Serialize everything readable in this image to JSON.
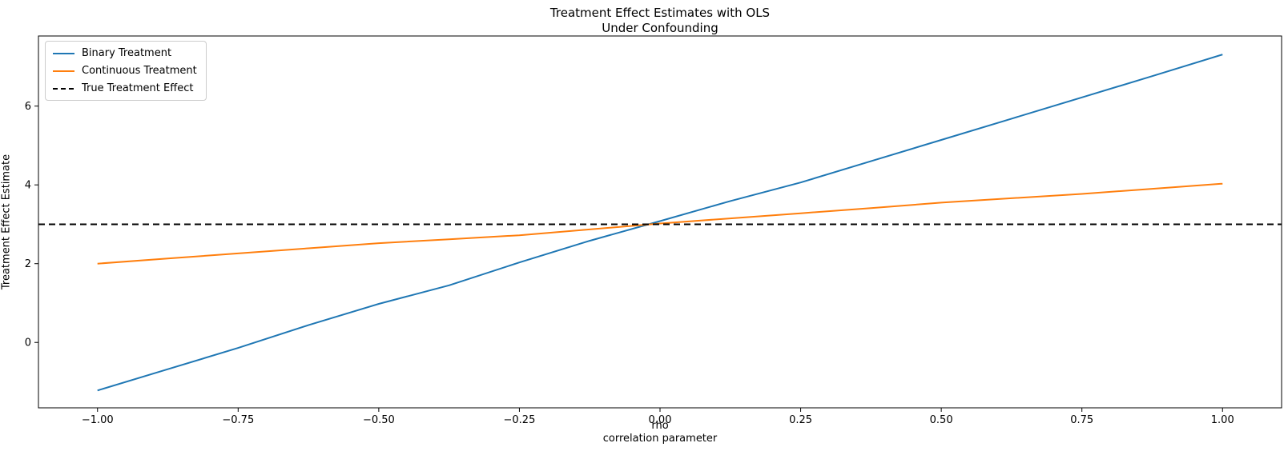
{
  "chart_data": {
    "type": "line",
    "title": "Treatment Effect Estimates with OLS",
    "subtitle": "Under Confounding",
    "ylabel": "Treatment Effect Estimate",
    "xlabel_line1": "rho",
    "xlabel_line2": "correlation parameter",
    "xlim": [
      -1.105,
      1.105
    ],
    "ylim": [
      -1.66,
      7.78
    ],
    "x_ticks": [
      -1.0,
      -0.75,
      -0.5,
      -0.25,
      0.0,
      0.25,
      0.5,
      0.75,
      1.0
    ],
    "y_ticks": [
      0,
      2,
      4,
      6
    ],
    "grid": false,
    "legend_position": "upper-left",
    "x": [
      -1.0,
      -0.875,
      -0.75,
      -0.625,
      -0.5,
      -0.375,
      -0.25,
      -0.125,
      0.0,
      0.125,
      0.25,
      0.375,
      0.5,
      0.625,
      0.75,
      0.875,
      1.0
    ],
    "series": [
      {
        "name": "Binary Treatment",
        "color": "#1f77b4",
        "style": "solid",
        "values": [
          -1.22,
          -0.68,
          -0.14,
          0.44,
          0.98,
          1.45,
          2.03,
          2.58,
          3.08,
          3.59,
          4.06,
          4.6,
          5.14,
          5.68,
          6.22,
          6.76,
          7.31
        ]
      },
      {
        "name": "Continuous Treatment",
        "color": "#ff7f0e",
        "style": "solid",
        "values": [
          2.0,
          2.13,
          2.26,
          2.39,
          2.52,
          2.62,
          2.72,
          2.87,
          3.02,
          3.15,
          3.28,
          3.41,
          3.55,
          3.66,
          3.77,
          3.9,
          4.03
        ]
      },
      {
        "name": "True Treatment Effect",
        "color": "#000000",
        "style": "dashed",
        "values": [
          3,
          3,
          3,
          3,
          3,
          3,
          3,
          3,
          3,
          3,
          3,
          3,
          3,
          3,
          3,
          3,
          3
        ]
      }
    ],
    "legend": [
      "Binary Treatment",
      "Continuous Treatment",
      "True Treatment Effect"
    ]
  }
}
